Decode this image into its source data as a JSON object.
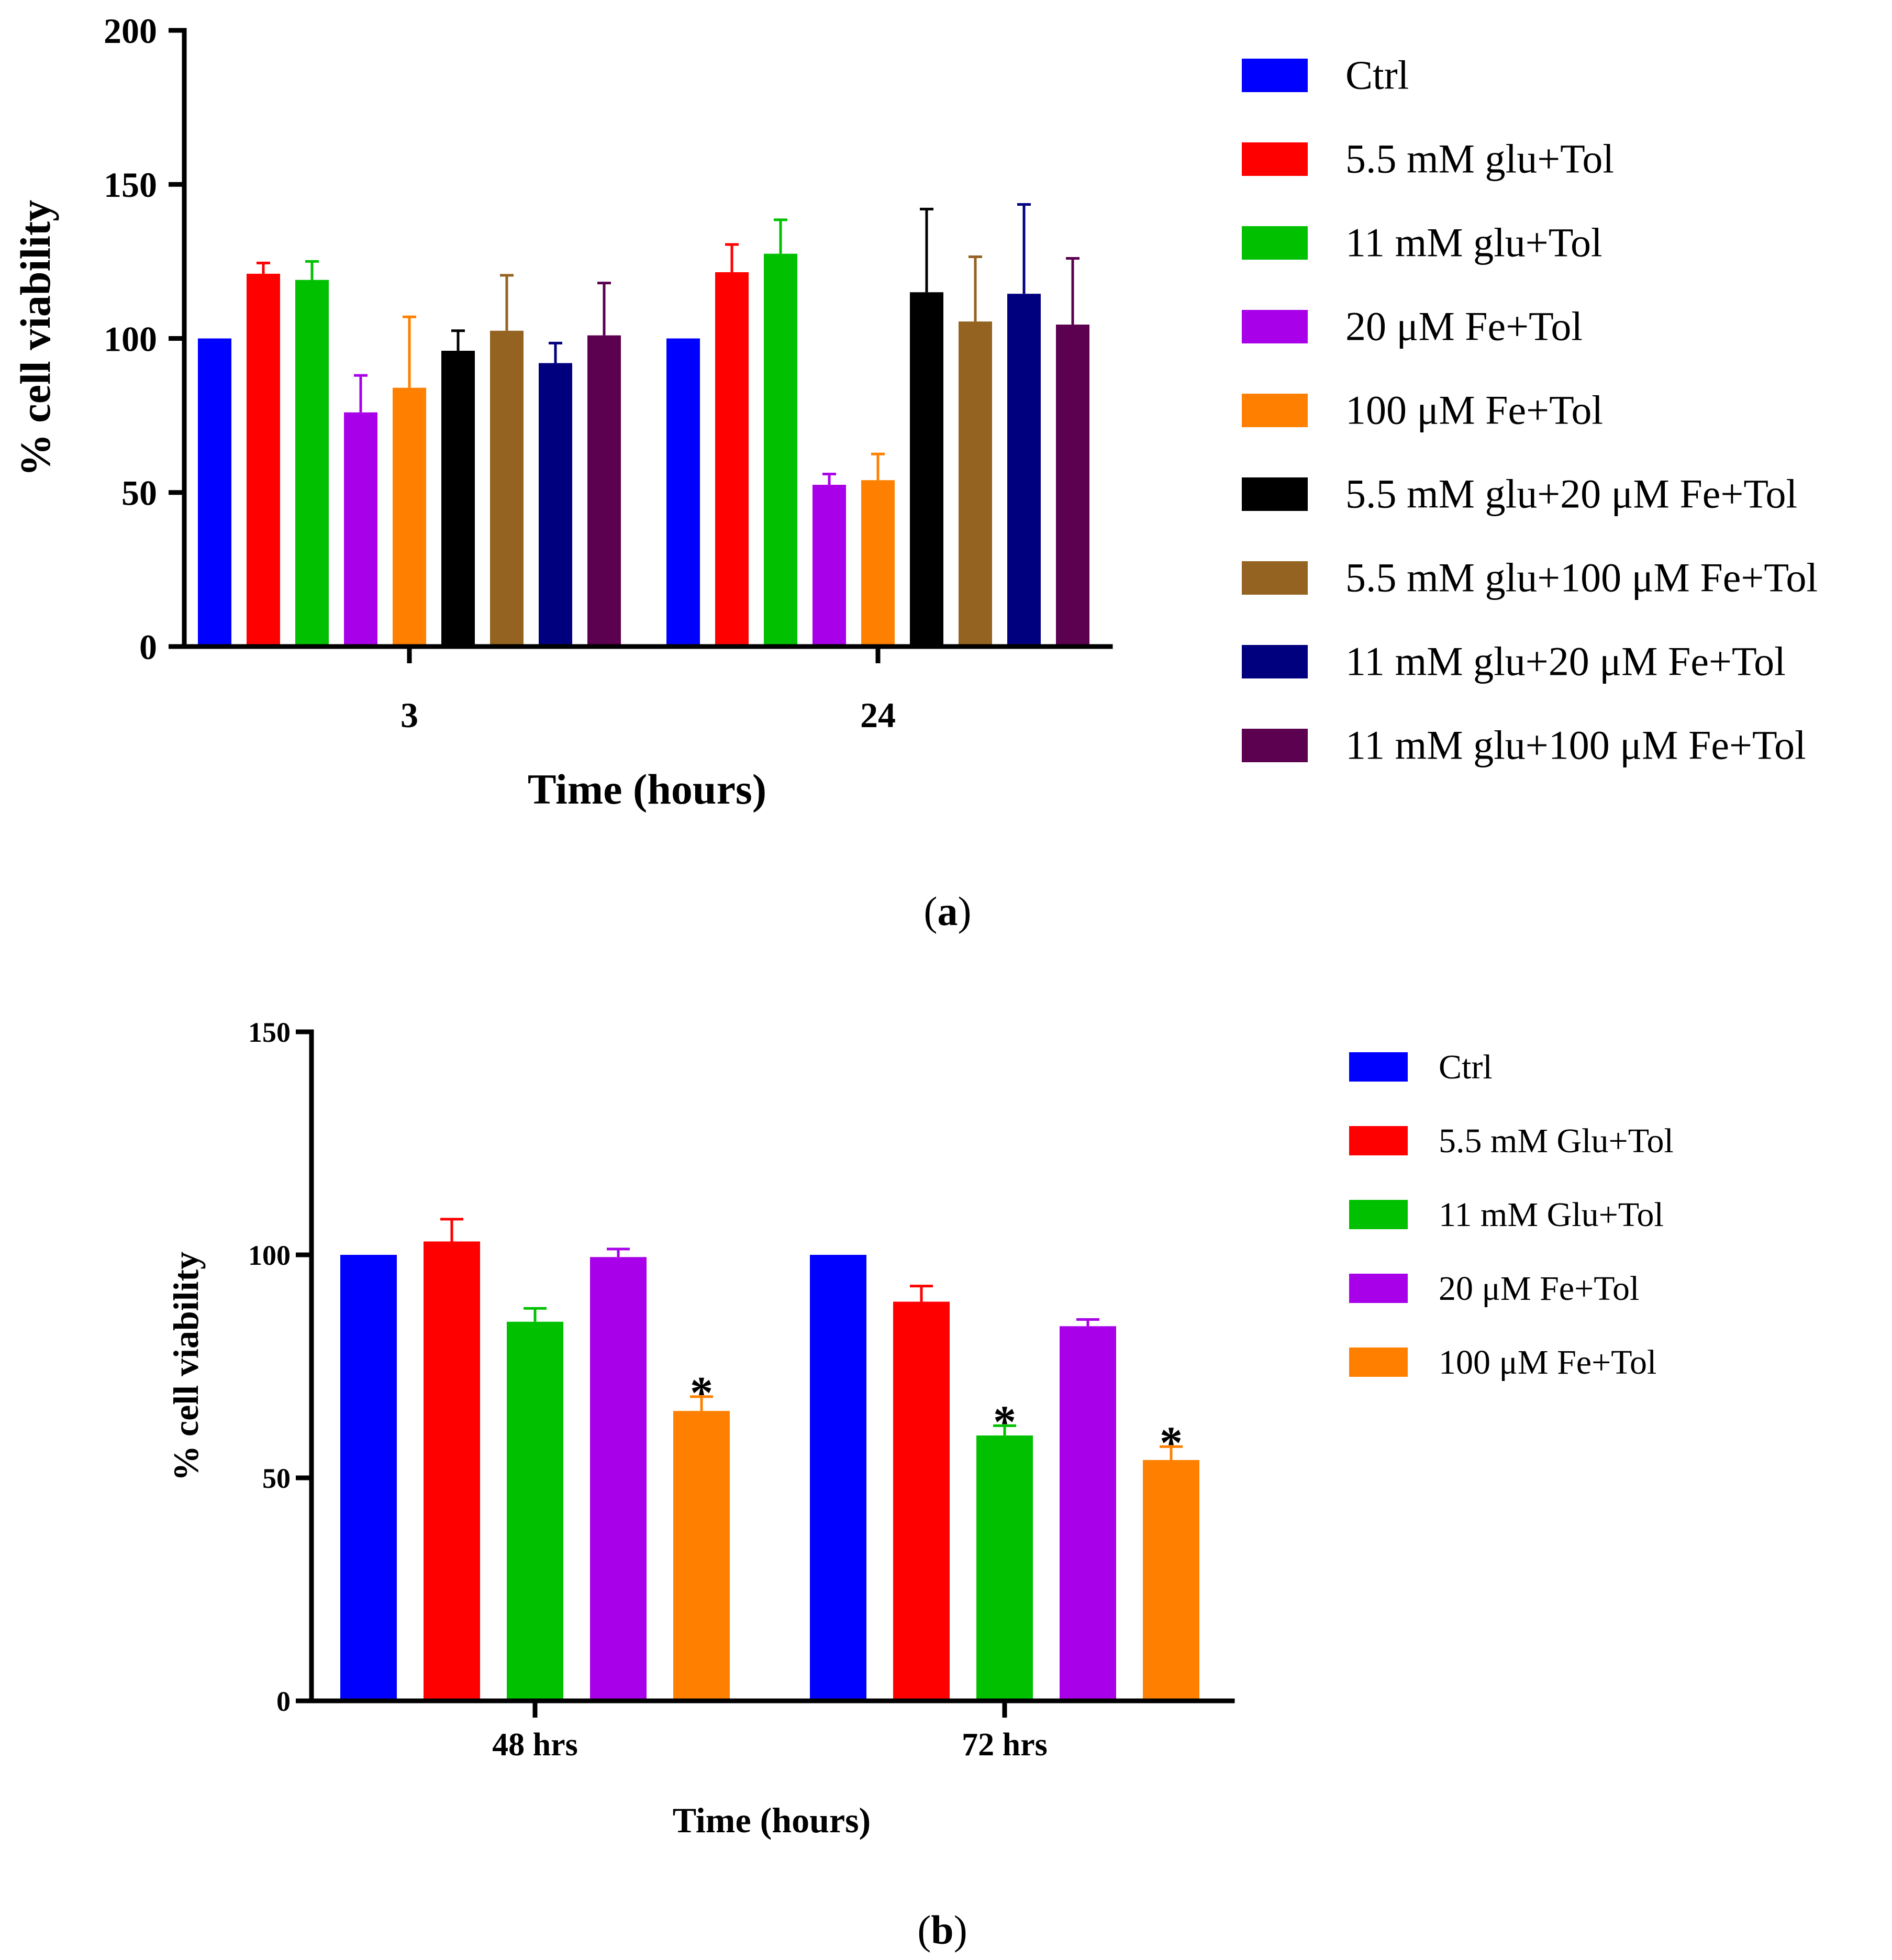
{
  "chart_data": [
    {
      "type": "bar",
      "id": "a",
      "caption_open": "(",
      "caption_letter": "a",
      "caption_close": ")",
      "xlabel": "Time (hours)",
      "ylabel": "% cell viability",
      "ylim": [
        0,
        200
      ],
      "yticks": [
        0,
        50,
        100,
        150,
        200
      ],
      "categories": [
        "3",
        "24"
      ],
      "legend_position": "right",
      "series": [
        {
          "name": "Ctrl",
          "color": "#0000ff",
          "values": [
            100,
            100
          ],
          "errors": [
            0,
            0
          ]
        },
        {
          "name": "5.5 mM glu+Tol",
          "color": "#ff0000",
          "values": [
            121,
            121.5
          ],
          "errors": [
            3.5,
            9
          ]
        },
        {
          "name": "11 mM glu+Tol",
          "color": "#00c000",
          "values": [
            119,
            127.5
          ],
          "errors": [
            6,
            11
          ]
        },
        {
          "name": "20 μM Fe+Tol",
          "color": "#a800e8",
          "values": [
            76,
            52.5
          ],
          "errors": [
            12,
            3.5
          ]
        },
        {
          "name": "100 μM Fe+Tol",
          "color": "#ff8000",
          "values": [
            84,
            54
          ],
          "errors": [
            23,
            8.5
          ]
        },
        {
          "name": "5.5 mM glu+20 μM Fe+Tol",
          "color": "#000000",
          "values": [
            96,
            115
          ],
          "errors": [
            6.5,
            27
          ]
        },
        {
          "name": "5.5 mM glu+100 μM Fe+Tol",
          "color": "#946221",
          "values": [
            102.5,
            105.5
          ],
          "errors": [
            18,
            21
          ]
        },
        {
          "name": "11 mM glu+20 μM Fe+Tol",
          "color": "#00007f",
          "values": [
            92,
            114.5
          ],
          "errors": [
            6.5,
            29
          ]
        },
        {
          "name": "11 mM glu+100 μM Fe+Tol",
          "color": "#5c0050",
          "values": [
            101,
            104.5
          ],
          "errors": [
            17,
            21.5
          ]
        }
      ]
    },
    {
      "type": "bar",
      "id": "b",
      "caption_open": "(",
      "caption_letter": "b",
      "caption_close": ")",
      "xlabel": "Time (hours)",
      "ylabel": "% cell viability",
      "ylim": [
        0,
        150
      ],
      "yticks": [
        0,
        50,
        100,
        150
      ],
      "categories": [
        "48 hrs",
        "72 hrs"
      ],
      "legend_position": "right",
      "series": [
        {
          "name": "Ctrl",
          "color": "#0000ff",
          "values": [
            100,
            100
          ],
          "errors": [
            0,
            0
          ],
          "significance": [
            "",
            ""
          ]
        },
        {
          "name": "5.5 mM Glu+Tol",
          "color": "#ff0000",
          "values": [
            103,
            89.5
          ],
          "errors": [
            5,
            3.5
          ],
          "significance": [
            "",
            ""
          ]
        },
        {
          "name": "11 mM Glu+Tol",
          "color": "#00c000",
          "values": [
            85,
            59.5
          ],
          "errors": [
            3,
            2.2
          ],
          "significance": [
            "",
            "*"
          ]
        },
        {
          "name": "20 μM Fe+Tol",
          "color": "#a800e8",
          "values": [
            99.5,
            84
          ],
          "errors": [
            1.8,
            1.5
          ],
          "significance": [
            "",
            ""
          ]
        },
        {
          "name": "100 μM Fe+Tol",
          "color": "#ff8000",
          "values": [
            65,
            54
          ],
          "errors": [
            3.2,
            3
          ],
          "significance": [
            "*",
            "*"
          ]
        }
      ]
    }
  ]
}
